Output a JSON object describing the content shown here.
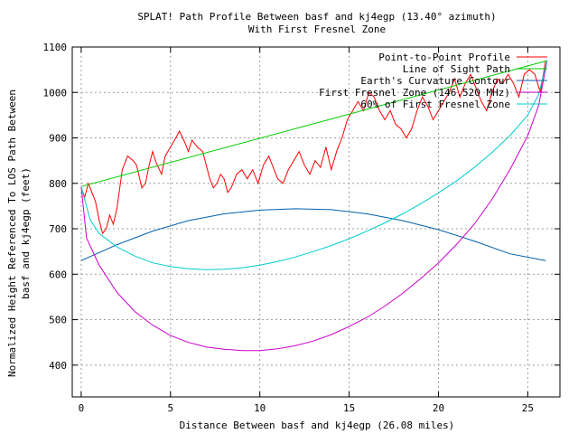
{
  "chart_data": {
    "type": "line",
    "title": "SPLAT! Path Profile Between basf and kj4egp (13.40° azimuth)",
    "subtitle": "With First Fresnel Zone",
    "xlabel": "Distance Between basf and kj4egp (26.08 miles)",
    "ylabel_line1": "Normalized Height Referenced To LOS Path Between",
    "ylabel_line2": "basf and kj4egp (feet)",
    "xlim": [
      -0.5,
      26.8
    ],
    "ylim": [
      330,
      1100
    ],
    "xticks": [
      0,
      5,
      10,
      15,
      20,
      25
    ],
    "yticks": [
      400,
      500,
      600,
      700,
      800,
      900,
      1000,
      1100
    ],
    "grid": true,
    "legend_position": "top-right",
    "series": [
      {
        "name": "Point-to-Point Profile",
        "color": "#ff0000",
        "points": [
          [
            0,
            790
          ],
          [
            0.2,
            770
          ],
          [
            0.4,
            800
          ],
          [
            0.6,
            780
          ],
          [
            0.8,
            760
          ],
          [
            1.0,
            720
          ],
          [
            1.2,
            690
          ],
          [
            1.4,
            700
          ],
          [
            1.6,
            730
          ],
          [
            1.8,
            710
          ],
          [
            2.0,
            745
          ],
          [
            2.3,
            830
          ],
          [
            2.6,
            860
          ],
          [
            2.9,
            850
          ],
          [
            3.1,
            840
          ],
          [
            3.4,
            790
          ],
          [
            3.6,
            800
          ],
          [
            3.8,
            840
          ],
          [
            4.0,
            870
          ],
          [
            4.2,
            845
          ],
          [
            4.5,
            820
          ],
          [
            4.7,
            860
          ],
          [
            5.0,
            880
          ],
          [
            5.3,
            900
          ],
          [
            5.5,
            915
          ],
          [
            5.8,
            890
          ],
          [
            6.0,
            870
          ],
          [
            6.2,
            895
          ],
          [
            6.5,
            880
          ],
          [
            6.8,
            870
          ],
          [
            7.0,
            840
          ],
          [
            7.2,
            810
          ],
          [
            7.4,
            790
          ],
          [
            7.6,
            800
          ],
          [
            7.8,
            820
          ],
          [
            8.0,
            810
          ],
          [
            8.2,
            780
          ],
          [
            8.4,
            790
          ],
          [
            8.7,
            820
          ],
          [
            9.0,
            830
          ],
          [
            9.3,
            810
          ],
          [
            9.6,
            830
          ],
          [
            9.9,
            800
          ],
          [
            10.2,
            840
          ],
          [
            10.5,
            860
          ],
          [
            10.8,
            830
          ],
          [
            11.0,
            810
          ],
          [
            11.3,
            800
          ],
          [
            11.6,
            830
          ],
          [
            11.9,
            850
          ],
          [
            12.2,
            870
          ],
          [
            12.5,
            840
          ],
          [
            12.8,
            820
          ],
          [
            13.1,
            850
          ],
          [
            13.4,
            835
          ],
          [
            13.7,
            880
          ],
          [
            14.0,
            830
          ],
          [
            14.3,
            870
          ],
          [
            14.6,
            900
          ],
          [
            14.9,
            940
          ],
          [
            15.2,
            960
          ],
          [
            15.5,
            980
          ],
          [
            15.8,
            960
          ],
          [
            16.1,
            1000
          ],
          [
            16.4,
            990
          ],
          [
            16.7,
            960
          ],
          [
            17.0,
            940
          ],
          [
            17.3,
            960
          ],
          [
            17.6,
            930
          ],
          [
            17.9,
            920
          ],
          [
            18.2,
            900
          ],
          [
            18.5,
            920
          ],
          [
            18.8,
            960
          ],
          [
            19.1,
            990
          ],
          [
            19.4,
            970
          ],
          [
            19.7,
            940
          ],
          [
            20.0,
            960
          ],
          [
            20.3,
            980
          ],
          [
            20.6,
            1000
          ],
          [
            20.9,
            1030
          ],
          [
            21.2,
            990
          ],
          [
            21.5,
            1020
          ],
          [
            21.8,
            1040
          ],
          [
            22.1,
            1010
          ],
          [
            22.4,
            980
          ],
          [
            22.7,
            960
          ],
          [
            23.0,
            1000
          ],
          [
            23.3,
            1030
          ],
          [
            23.6,
            1020
          ],
          [
            23.9,
            1040
          ],
          [
            24.2,
            1020
          ],
          [
            24.5,
            990
          ],
          [
            24.8,
            1040
          ],
          [
            25.1,
            1050
          ],
          [
            25.4,
            1040
          ],
          [
            25.7,
            1000
          ],
          [
            26.0,
            1070
          ]
        ]
      },
      {
        "name": "Line of Sight Path",
        "color": "#00cc00",
        "points": [
          [
            0,
            793
          ],
          [
            26.08,
            1070
          ]
        ]
      },
      {
        "name": "Earth's Curvature Contour",
        "color": "#0060ad",
        "points": [
          [
            0,
            630
          ],
          [
            2,
            665
          ],
          [
            4,
            695
          ],
          [
            6,
            718
          ],
          [
            8,
            733
          ],
          [
            10,
            741
          ],
          [
            12,
            744
          ],
          [
            14,
            742
          ],
          [
            16,
            733
          ],
          [
            18,
            718
          ],
          [
            20,
            698
          ],
          [
            22,
            673
          ],
          [
            24,
            645
          ],
          [
            26,
            630
          ]
        ]
      },
      {
        "name": "First Fresnel Zone (146.520 MHz)",
        "color": "#cc00cc",
        "points": [
          [
            0,
            793
          ],
          [
            0.3,
            680
          ],
          [
            1,
            620
          ],
          [
            2,
            560
          ],
          [
            3,
            518
          ],
          [
            4,
            488
          ],
          [
            5,
            465
          ],
          [
            6,
            450
          ],
          [
            7,
            440
          ],
          [
            8,
            435
          ],
          [
            9,
            432
          ],
          [
            10,
            432
          ],
          [
            11,
            436
          ],
          [
            12,
            443
          ],
          [
            13,
            453
          ],
          [
            14,
            467
          ],
          [
            15,
            485
          ],
          [
            16,
            505
          ],
          [
            17,
            530
          ],
          [
            18,
            558
          ],
          [
            19,
            590
          ],
          [
            20,
            625
          ],
          [
            21,
            665
          ],
          [
            22,
            710
          ],
          [
            23,
            765
          ],
          [
            24,
            830
          ],
          [
            25,
            905
          ],
          [
            25.6,
            970
          ],
          [
            26.08,
            1070
          ]
        ]
      },
      {
        "name": "60% of First Fresnel Zone",
        "color": "#00cccc",
        "points": [
          [
            0,
            793
          ],
          [
            0.5,
            720
          ],
          [
            1,
            690
          ],
          [
            2,
            660
          ],
          [
            3,
            640
          ],
          [
            4,
            625
          ],
          [
            5,
            617
          ],
          [
            6,
            612
          ],
          [
            7,
            610
          ],
          [
            8,
            611
          ],
          [
            9,
            614
          ],
          [
            10,
            620
          ],
          [
            11,
            628
          ],
          [
            12,
            638
          ],
          [
            13,
            650
          ],
          [
            14,
            663
          ],
          [
            15,
            678
          ],
          [
            16,
            695
          ],
          [
            17,
            713
          ],
          [
            18,
            733
          ],
          [
            19,
            755
          ],
          [
            20,
            779
          ],
          [
            21,
            805
          ],
          [
            22,
            835
          ],
          [
            23,
            868
          ],
          [
            24,
            905
          ],
          [
            25,
            950
          ],
          [
            25.6,
            995
          ],
          [
            26.08,
            1070
          ]
        ]
      }
    ]
  }
}
